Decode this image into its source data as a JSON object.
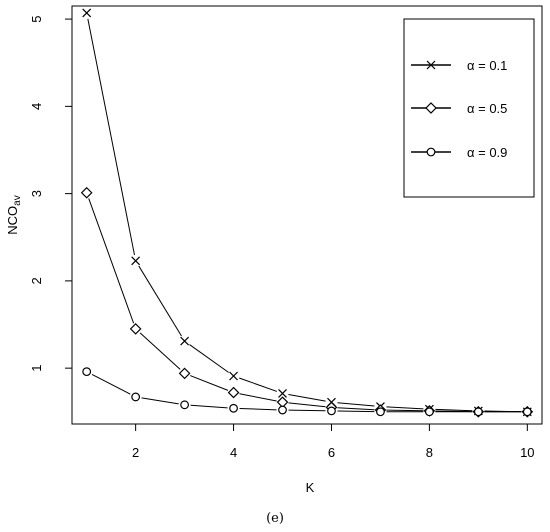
{
  "chart_data": {
    "type": "line",
    "xlabel": "K",
    "ylabel_main": "NCO",
    "ylabel_subscript": "av",
    "caption": "(e)",
    "x": [
      1,
      2,
      3,
      4,
      5,
      6,
      7,
      8,
      9,
      10
    ],
    "xlim": [
      0.7,
      10.3
    ],
    "ylim": [
      0.36,
      5.15
    ],
    "x_ticks": [
      2,
      4,
      6,
      8,
      10
    ],
    "y_ticks": [
      1,
      2,
      3,
      4,
      5
    ],
    "grid": false,
    "legend_position": "top-right",
    "series": [
      {
        "name": "α = 0.1",
        "marker": "x",
        "values": [
          5.07,
          2.23,
          1.31,
          0.91,
          0.71,
          0.61,
          0.56,
          0.53,
          0.51,
          0.5
        ]
      },
      {
        "name": "α = 0.5",
        "marker": "diamond",
        "values": [
          3.01,
          1.45,
          0.94,
          0.72,
          0.61,
          0.55,
          0.52,
          0.51,
          0.5,
          0.5
        ]
      },
      {
        "name": "α = 0.9",
        "marker": "circle",
        "values": [
          0.96,
          0.67,
          0.58,
          0.54,
          0.52,
          0.51,
          0.5,
          0.5,
          0.5,
          0.5
        ]
      }
    ]
  },
  "colors": {
    "line": "#000000",
    "background": "#ffffff"
  }
}
